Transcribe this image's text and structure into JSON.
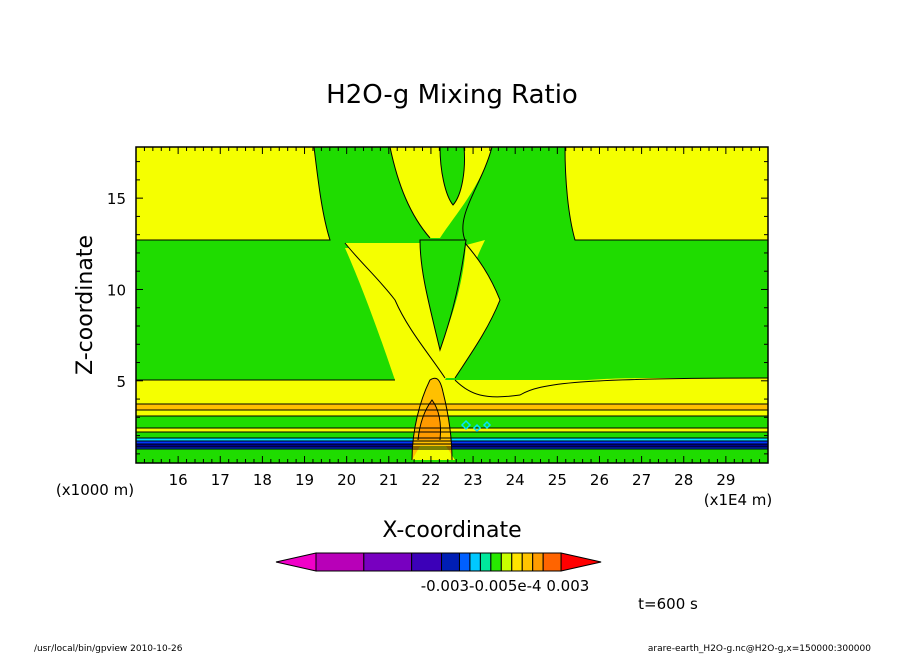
{
  "chart_data": {
    "type": "contour",
    "title": "H2O-g Mixing Ratio",
    "xlabel": "X-coordinate",
    "ylabel": "Z-coordinate",
    "x_unit_note": "(x1E4 m)",
    "y_unit_note": "(x1000 m)",
    "xlim": [
      15.0,
      30.0
    ],
    "ylim": [
      0.5,
      17.8
    ],
    "x_ticks": [
      "16",
      "17",
      "18",
      "19",
      "20",
      "21",
      "22",
      "23",
      "24",
      "25",
      "26",
      "27",
      "28",
      "29"
    ],
    "y_ticks": [
      "5",
      "10",
      "15"
    ],
    "colors": {
      "background": "#ffffff",
      "yellow": "#f5ff00",
      "green": "#1fdc00",
      "light_orange": "#ffc000",
      "orange": "#ff9a00",
      "cyan": "#00e4ff",
      "blue": "#0036ff",
      "navy": "#00008c"
    },
    "colorbar": {
      "colors": [
        "#f000c8",
        "#b800b8",
        "#7800c0",
        "#3c00b8",
        "#001eb4",
        "#0060ff",
        "#00c8ff",
        "#00e89c",
        "#28e800",
        "#c8ff00",
        "#ffe400",
        "#ffc400",
        "#ff9c00",
        "#ff6400",
        "#ff0000"
      ],
      "labels": [
        "-0.003",
        "-0.005e-4",
        "0.003"
      ],
      "label_text": "-0.003-0.005e-4   0.003"
    }
  },
  "annotations": {
    "time": "t=600 s",
    "footer_left": "/usr/local/bin/gpview  2010-10-26",
    "footer_right": "arare-earth_H2O-g.nc@H2O-g,x=150000:300000"
  }
}
